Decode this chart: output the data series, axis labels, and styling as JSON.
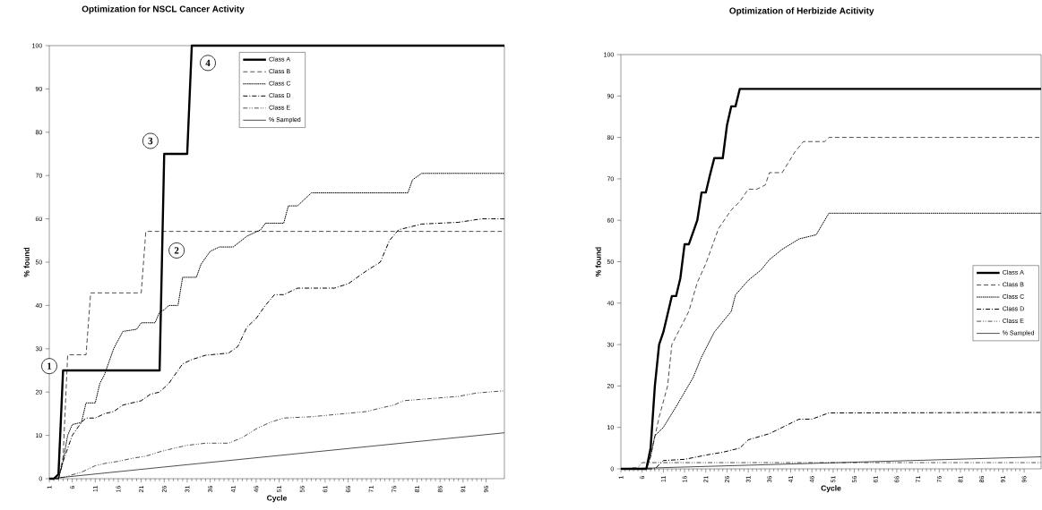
{
  "chart_data": [
    {
      "type": "line",
      "title": "Optimization for NSCL Cancer Activity",
      "xlabel": "Cycle",
      "ylabel": "% found",
      "xlim": [
        1,
        100
      ],
      "xticks": [
        1,
        6,
        11,
        16,
        21,
        26,
        31,
        36,
        41,
        46,
        51,
        56,
        61,
        66,
        71,
        76,
        81,
        86,
        91,
        96
      ],
      "ylim": [
        0,
        100
      ],
      "yticks": [
        0,
        10,
        20,
        30,
        40,
        50,
        60,
        70,
        80,
        90,
        100
      ],
      "legend": "top",
      "series": [
        {
          "name": "Class A",
          "color": "#000000",
          "line_style": "solid",
          "x": [
            1,
            2,
            3,
            4,
            25,
            26,
            31,
            32,
            100
          ],
          "values": [
            0,
            0,
            1,
            25,
            25,
            75,
            75,
            100,
            100
          ]
        },
        {
          "name": "Class B",
          "color": "#000000",
          "line_style": "dashed",
          "x": [
            1,
            3,
            4,
            5,
            9,
            10,
            21,
            22,
            100
          ],
          "values": [
            0,
            0,
            5,
            28.6,
            28.6,
            42.9,
            42.9,
            57.1,
            57.1
          ]
        },
        {
          "name": "Class C",
          "color": "#000000",
          "line_style": "dotted",
          "x": [
            1,
            3,
            4,
            5,
            6,
            8,
            9,
            11,
            12,
            13,
            15,
            17,
            20,
            21,
            24,
            25,
            26,
            27,
            29,
            30,
            33,
            34,
            36,
            38,
            41,
            44,
            47,
            48,
            52,
            53,
            55,
            58,
            79,
            80,
            82,
            100
          ],
          "values": [
            0,
            0,
            4,
            10,
            12.5,
            13,
            17.5,
            17.5,
            22,
            24,
            30,
            34,
            34.5,
            36,
            36,
            38.5,
            39,
            40,
            40,
            46.5,
            46.5,
            49.5,
            52.5,
            53.5,
            53.5,
            56,
            57.5,
            59,
            59,
            63,
            63,
            66,
            66,
            69,
            70.5,
            70.5
          ]
        },
        {
          "name": "Class D",
          "color": "#000000",
          "line_style": "dashdot",
          "x": [
            1,
            3,
            4,
            5,
            6,
            8,
            9,
            11,
            13,
            15,
            17,
            21,
            23,
            25,
            27,
            29,
            30,
            32,
            35,
            40,
            42,
            44,
            46,
            48,
            50,
            52,
            55,
            63,
            66,
            68,
            70,
            73,
            75,
            77,
            79,
            82,
            86,
            90,
            95,
            100
          ],
          "values": [
            0,
            0,
            4,
            7,
            10,
            13,
            14,
            14,
            15,
            15.5,
            17,
            18,
            19.5,
            20,
            22,
            25,
            26.5,
            27.5,
            28.5,
            29,
            30.5,
            35,
            37,
            40,
            42.5,
            42.5,
            44,
            44,
            45,
            46.5,
            48,
            50,
            55,
            57.5,
            58,
            58.8,
            59,
            59.2,
            60,
            60
          ]
        },
        {
          "name": "Class E",
          "color": "#000000",
          "line_style": "dashdotdot",
          "x": [
            1,
            4,
            8,
            11,
            13,
            16,
            19,
            22,
            25,
            28,
            31,
            35,
            40,
            43,
            46,
            49,
            52,
            58,
            65,
            70,
            73,
            76,
            78,
            84,
            90,
            94,
            100
          ],
          "values": [
            0,
            0.3,
            1.5,
            3,
            3.5,
            4,
            4.7,
            5.2,
            6.2,
            7,
            7.7,
            8.2,
            8.2,
            9.5,
            11.5,
            13,
            14,
            14.3,
            15,
            15.5,
            16.3,
            17,
            18,
            18.5,
            19,
            19.8,
            20.3
          ]
        },
        {
          "name": "% Sampled",
          "color": "#000000",
          "line_style": "solid",
          "x": [
            1,
            26,
            72,
            100
          ],
          "values": [
            0,
            2.7,
            7.6,
            10.6
          ]
        }
      ],
      "annotations": [
        {
          "text": "1",
          "x": 1,
          "y": 26
        },
        {
          "text": "2",
          "x": 28.7,
          "y": 52.7
        },
        {
          "text": "3",
          "x": 23,
          "y": 78
        },
        {
          "text": "4",
          "x": 35.5,
          "y": 96
        }
      ]
    },
    {
      "type": "line",
      "title": "Optimization of Herbizide Acitivity",
      "xlabel": "Cycle",
      "ylabel": "% found",
      "xlim": [
        1,
        100
      ],
      "xticks": [
        1,
        6,
        11,
        16,
        21,
        26,
        31,
        36,
        41,
        46,
        51,
        56,
        61,
        66,
        71,
        76,
        81,
        86,
        91,
        96
      ],
      "ylim": [
        0,
        100
      ],
      "yticks": [
        0,
        10,
        20,
        30,
        40,
        50,
        60,
        70,
        80,
        90,
        100
      ],
      "legend": "right",
      "series": [
        {
          "name": "Class A",
          "color": "#000000",
          "line_style": "solid",
          "x": [
            1,
            7,
            8,
            9,
            10,
            11,
            13,
            14,
            15,
            16,
            17,
            19,
            20,
            21,
            22,
            23,
            25,
            26,
            27,
            28,
            29,
            100
          ],
          "values": [
            0,
            0,
            5,
            20,
            30,
            33,
            41.7,
            41.7,
            46,
            54.2,
            54.2,
            60,
            66.7,
            66.7,
            71,
            75,
            75,
            83,
            87.5,
            87.5,
            91.7,
            91.7
          ]
        },
        {
          "name": "Class B",
          "color": "#000000",
          "line_style": "dashed",
          "x": [
            1,
            7,
            8,
            10,
            12,
            13,
            17,
            19,
            21,
            24,
            27,
            29,
            31,
            33,
            35,
            36,
            39,
            42,
            44,
            49,
            50,
            100
          ],
          "values": [
            0,
            0,
            3,
            12.5,
            20,
            30,
            38,
            45,
            49.5,
            58,
            62.5,
            64.5,
            67.5,
            67.5,
            68.5,
            71.5,
            71.5,
            76.5,
            79,
            79,
            80,
            80
          ]
        },
        {
          "name": "Class C",
          "color": "#000000",
          "line_style": "dotted",
          "x": [
            1,
            7,
            8,
            9,
            11,
            14,
            18,
            20,
            23,
            27,
            28,
            31,
            34,
            36,
            39,
            43,
            47,
            50,
            100
          ],
          "values": [
            0,
            0,
            3,
            8,
            10,
            15,
            22,
            27,
            33,
            38,
            42,
            45.5,
            48,
            50.5,
            53,
            55.5,
            56.5,
            61.7,
            61.7
          ]
        },
        {
          "name": "Class D",
          "color": "#000000",
          "line_style": "dashdot",
          "x": [
            1,
            9,
            11,
            16,
            22,
            25,
            29,
            31,
            36,
            39,
            43,
            46,
            50,
            100
          ],
          "values": [
            0,
            0,
            2,
            2.3,
            3.5,
            4,
            5,
            7,
            8.5,
            10,
            12,
            12,
            13.5,
            13.6
          ]
        },
        {
          "name": "Class E",
          "color": "#000000",
          "line_style": "dashdotdot",
          "x": [
            1,
            5,
            6,
            100
          ],
          "values": [
            0,
            0.3,
            1.5,
            1.5
          ]
        },
        {
          "name": "% Sampled",
          "color": "#000000",
          "line_style": "solid",
          "x": [
            1,
            100
          ],
          "values": [
            0,
            2.9
          ]
        }
      ]
    }
  ]
}
